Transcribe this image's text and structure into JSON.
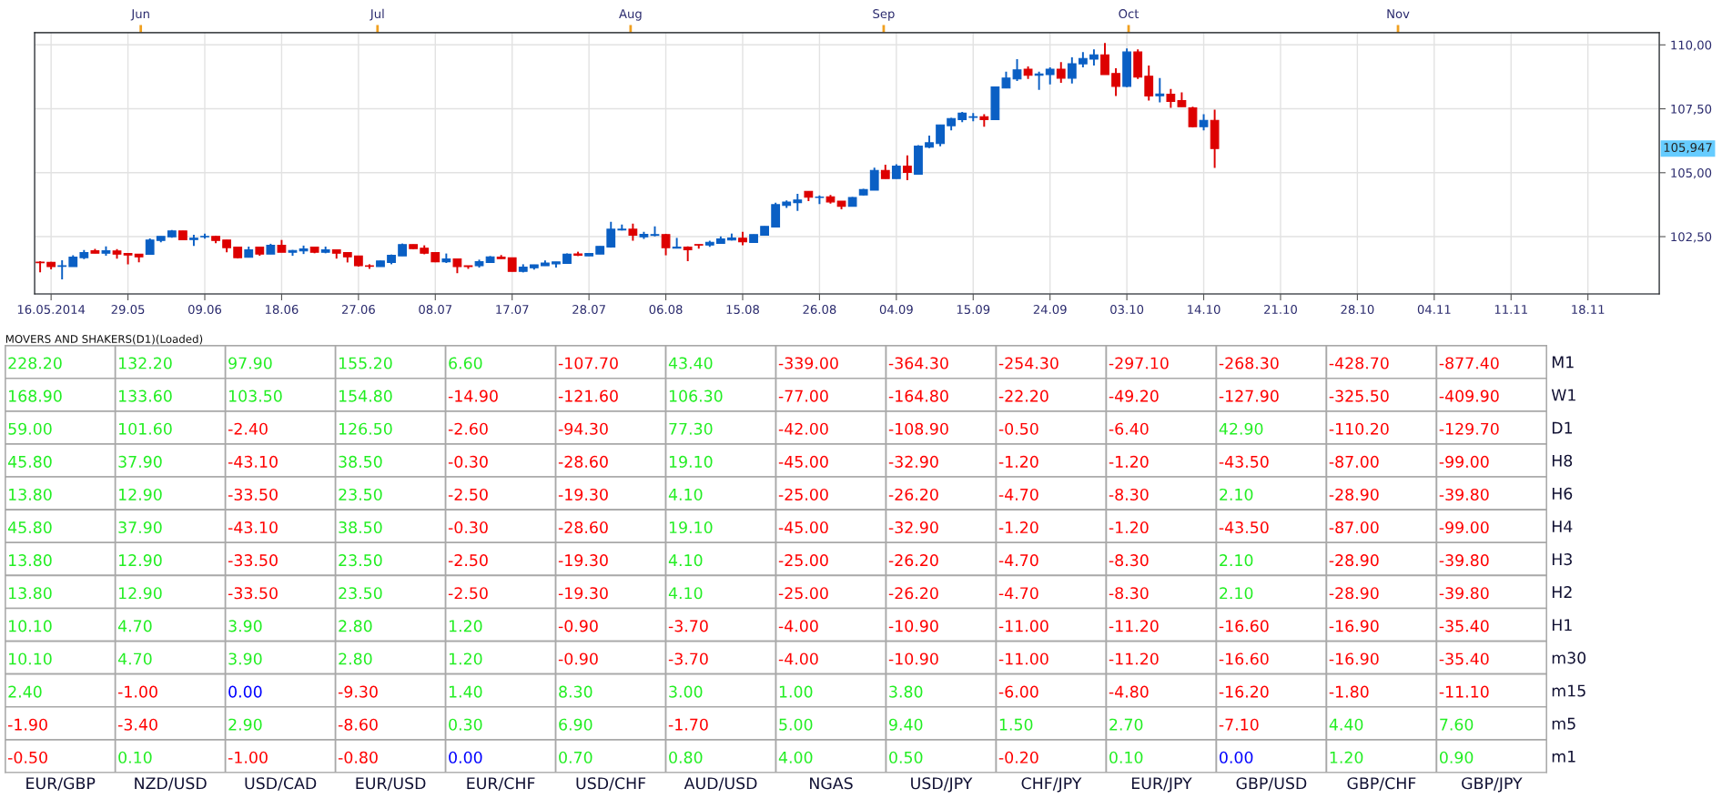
{
  "chart_data": [
    {
      "type": "candlestick",
      "categories": [
        null,
        "16.05.2014",
        null,
        null,
        null,
        null,
        null,
        null,
        "29.05",
        null,
        null,
        null,
        null,
        null,
        null,
        "09.06",
        null,
        null,
        null,
        null,
        null,
        null,
        "18.06",
        null,
        null,
        null,
        null,
        null,
        null,
        "27.06",
        null,
        null,
        null,
        null,
        null,
        null,
        "08.07",
        null,
        null,
        null,
        null,
        null,
        null,
        "17.07",
        null,
        null,
        null,
        null,
        null,
        null,
        "28.07",
        null,
        null,
        null,
        null,
        null,
        null,
        "06.08",
        null,
        null,
        null,
        null,
        null,
        null,
        "15.08",
        null,
        null,
        null,
        null,
        null,
        null,
        "26.08",
        null,
        null,
        null,
        null,
        null,
        null,
        "04.09",
        null,
        null,
        null,
        null,
        null,
        null,
        "15.09",
        null,
        null,
        null,
        null,
        null,
        null,
        "24.09",
        null,
        null,
        null,
        null,
        null,
        null,
        "03.10",
        null,
        null,
        null,
        null,
        null,
        null,
        "14.10",
        null,
        null,
        null,
        null,
        null,
        null,
        "21.10",
        null,
        null,
        null,
        null,
        null,
        null,
        "28.10",
        null,
        null,
        null,
        null,
        null,
        null,
        "04.11",
        null,
        null,
        null,
        null,
        null,
        null,
        "11.11",
        null,
        null,
        null,
        null,
        null,
        null,
        "18.11",
        null,
        null,
        null,
        null,
        null,
        null
      ],
      "ohlc": [
        [
          101.5,
          101.54,
          101.1,
          101.48
        ],
        [
          101.49,
          101.51,
          101.22,
          101.33
        ],
        [
          101.34,
          101.58,
          100.83,
          101.36
        ],
        [
          101.33,
          101.77,
          101.33,
          101.7
        ],
        [
          101.68,
          101.98,
          101.62,
          101.88
        ],
        [
          101.95,
          102.02,
          101.85,
          101.85
        ],
        [
          101.85,
          102.12,
          101.75,
          101.95
        ],
        [
          101.94,
          102.01,
          101.64,
          101.82
        ],
        [
          101.84,
          101.84,
          101.42,
          101.78
        ],
        [
          101.81,
          101.81,
          101.5,
          101.71
        ],
        [
          101.81,
          102.43,
          101.8,
          102.37
        ],
        [
          102.35,
          102.51,
          102.28,
          102.51
        ],
        [
          102.49,
          102.76,
          102.46,
          102.72
        ],
        [
          102.72,
          102.72,
          102.36,
          102.38
        ],
        [
          102.39,
          102.57,
          102.14,
          102.44
        ],
        [
          102.49,
          102.62,
          102.42,
          102.51
        ],
        [
          102.51,
          102.54,
          102.24,
          102.35
        ],
        [
          102.37,
          102.37,
          101.89,
          102.07
        ],
        [
          102.09,
          102.09,
          101.65,
          101.68
        ],
        [
          101.69,
          102.11,
          101.69,
          101.98
        ],
        [
          102.09,
          102.09,
          101.75,
          101.82
        ],
        [
          101.82,
          102.22,
          101.82,
          102.16
        ],
        [
          102.16,
          102.37,
          101.89,
          101.89
        ],
        [
          101.89,
          101.98,
          101.75,
          101.96
        ],
        [
          101.94,
          102.15,
          101.82,
          102.02
        ],
        [
          102.09,
          102.11,
          101.85,
          101.89
        ],
        [
          101.89,
          102.11,
          101.85,
          101.98
        ],
        [
          101.98,
          101.98,
          101.64,
          101.85
        ],
        [
          101.88,
          101.88,
          101.49,
          101.71
        ],
        [
          101.74,
          101.74,
          101.33,
          101.36
        ],
        [
          101.36,
          101.42,
          101.24,
          101.34
        ],
        [
          101.33,
          101.56,
          101.33,
          101.55
        ],
        [
          101.49,
          101.8,
          101.42,
          101.77
        ],
        [
          101.75,
          102.23,
          101.75,
          102.19
        ],
        [
          102.19,
          102.19,
          102.01,
          102.03
        ],
        [
          102.05,
          102.16,
          101.81,
          101.85
        ],
        [
          101.88,
          101.88,
          101.5,
          101.52
        ],
        [
          101.52,
          101.84,
          101.47,
          101.63
        ],
        [
          101.63,
          101.63,
          101.07,
          101.33
        ],
        [
          101.36,
          101.36,
          101.24,
          101.33
        ],
        [
          101.36,
          101.6,
          101.29,
          101.52
        ],
        [
          101.49,
          101.74,
          101.49,
          101.71
        ],
        [
          101.7,
          101.78,
          101.64,
          101.64
        ],
        [
          101.67,
          101.67,
          101.14,
          101.14
        ],
        [
          101.14,
          101.42,
          101.1,
          101.31
        ],
        [
          101.28,
          101.4,
          101.21,
          101.4
        ],
        [
          101.36,
          101.57,
          101.36,
          101.47
        ],
        [
          101.44,
          101.51,
          101.29,
          101.51
        ],
        [
          101.45,
          101.84,
          101.44,
          101.81
        ],
        [
          101.82,
          101.91,
          101.74,
          101.77
        ],
        [
          101.75,
          101.84,
          101.75,
          101.84
        ],
        [
          101.82,
          102.12,
          101.82,
          102.12
        ],
        [
          102.09,
          103.08,
          102.07,
          102.79
        ],
        [
          102.76,
          102.97,
          102.74,
          102.79
        ],
        [
          102.79,
          103.01,
          102.34,
          102.56
        ],
        [
          102.49,
          102.69,
          102.41,
          102.59
        ],
        [
          102.55,
          102.9,
          102.51,
          102.58
        ],
        [
          102.58,
          102.61,
          101.77,
          102.07
        ],
        [
          102.05,
          102.45,
          102.05,
          102.09
        ],
        [
          102.09,
          102.12,
          101.54,
          101.99
        ],
        [
          102.19,
          102.19,
          102.03,
          102.17
        ],
        [
          102.17,
          102.34,
          102.1,
          102.28
        ],
        [
          102.24,
          102.51,
          102.24,
          102.41
        ],
        [
          102.37,
          102.62,
          102.35,
          102.45
        ],
        [
          102.44,
          102.69,
          102.16,
          102.3
        ],
        [
          102.27,
          102.58,
          102.27,
          102.58
        ],
        [
          102.56,
          102.9,
          102.56,
          102.9
        ],
        [
          102.88,
          103.83,
          102.88,
          103.75
        ],
        [
          103.72,
          103.92,
          103.62,
          103.85
        ],
        [
          103.83,
          104.17,
          103.51,
          103.93
        ],
        [
          104.27,
          104.27,
          103.89,
          104.04
        ],
        [
          104.03,
          104.11,
          103.77,
          104.05
        ],
        [
          104.06,
          104.13,
          103.79,
          103.86
        ],
        [
          103.89,
          103.89,
          103.57,
          103.69
        ],
        [
          103.69,
          104.05,
          103.69,
          104.03
        ],
        [
          104.13,
          104.37,
          104.11,
          104.34
        ],
        [
          104.32,
          105.2,
          104.32,
          105.09
        ],
        [
          105.09,
          105.31,
          104.77,
          104.77
        ],
        [
          104.77,
          105.33,
          104.77,
          105.26
        ],
        [
          105.26,
          105.68,
          104.71,
          105.01
        ],
        [
          104.94,
          106.08,
          104.94,
          106.04
        ],
        [
          106.0,
          106.45,
          105.96,
          106.17
        ],
        [
          106.14,
          106.87,
          106.03,
          106.87
        ],
        [
          106.84,
          107.15,
          106.66,
          107.12
        ],
        [
          107.08,
          107.38,
          106.98,
          107.33
        ],
        [
          107.17,
          107.33,
          107.01,
          107.19
        ],
        [
          107.19,
          107.29,
          106.8,
          107.08
        ],
        [
          107.08,
          108.35,
          107.08,
          108.35
        ],
        [
          108.31,
          108.95,
          108.31,
          108.7
        ],
        [
          108.67,
          109.44,
          108.59,
          109.02
        ],
        [
          109.05,
          109.16,
          108.67,
          108.81
        ],
        [
          108.81,
          108.95,
          108.24,
          108.86
        ],
        [
          108.84,
          109.12,
          108.45,
          109.05
        ],
        [
          109.05,
          109.33,
          108.52,
          108.7
        ],
        [
          108.7,
          109.51,
          108.49,
          109.26
        ],
        [
          109.26,
          109.72,
          109.12,
          109.47
        ],
        [
          109.44,
          109.82,
          109.19,
          109.61
        ],
        [
          109.61,
          110.07,
          108.84,
          108.84
        ],
        [
          108.88,
          109.09,
          108.0,
          108.38
        ],
        [
          108.38,
          109.86,
          108.35,
          109.72
        ],
        [
          109.72,
          109.82,
          108.67,
          108.74
        ],
        [
          108.77,
          109.19,
          107.82,
          108.0
        ],
        [
          108.01,
          108.7,
          107.75,
          108.08
        ],
        [
          108.07,
          108.28,
          107.54,
          107.79
        ],
        [
          107.82,
          108.14,
          107.58,
          107.58
        ],
        [
          107.54,
          107.58,
          106.77,
          106.8
        ],
        [
          106.8,
          107.29,
          106.66,
          107.05
        ],
        [
          107.05,
          107.47,
          105.19,
          105.947
        ],
        null,
        null,
        null,
        null,
        null,
        null,
        null,
        null,
        null,
        null,
        null,
        null,
        null,
        null,
        null,
        null,
        null,
        null,
        null,
        null,
        null,
        null,
        null,
        null,
        null,
        null,
        null,
        null,
        null,
        null,
        null,
        null,
        null,
        null,
        null,
        null,
        null,
        null,
        null,
        null
      ],
      "colors": [
        "#dd0000",
        "#dd0000",
        "#0a5fc4",
        "#0a5fc4",
        "#0a5fc4",
        "#dd0000",
        "#0a5fc4",
        "#dd0000",
        "#dd0000",
        "#dd0000",
        "#0a5fc4",
        "#0a5fc4",
        "#0a5fc4",
        "#dd0000",
        "#0a5fc4",
        "#0a5fc4",
        "#dd0000",
        "#dd0000",
        "#dd0000",
        "#0a5fc4",
        "#dd0000",
        "#0a5fc4",
        "#dd0000",
        "#0a5fc4",
        "#0a5fc4",
        "#dd0000",
        "#0a5fc4",
        "#dd0000",
        "#dd0000",
        "#dd0000",
        "#dd0000",
        "#0a5fc4",
        "#0a5fc4",
        "#0a5fc4",
        "#dd0000",
        "#dd0000",
        "#dd0000",
        "#0a5fc4",
        "#dd0000",
        "#dd0000",
        "#0a5fc4",
        "#0a5fc4",
        "#dd0000",
        "#dd0000",
        "#0a5fc4",
        "#0a5fc4",
        "#0a5fc4",
        "#0a5fc4",
        "#0a5fc4",
        "#dd0000",
        "#0a5fc4",
        "#0a5fc4",
        "#0a5fc4",
        "#0a5fc4",
        "#dd0000",
        "#0a5fc4",
        "#0a5fc4",
        "#dd0000",
        "#0a5fc4",
        "#dd0000",
        "#dd0000",
        "#0a5fc4",
        "#0a5fc4",
        "#0a5fc4",
        "#dd0000",
        "#0a5fc4",
        "#0a5fc4",
        "#0a5fc4",
        "#0a5fc4",
        "#0a5fc4",
        "#dd0000",
        "#0a5fc4",
        "#dd0000",
        "#dd0000",
        "#0a5fc4",
        "#0a5fc4",
        "#0a5fc4",
        "#dd0000",
        "#0a5fc4",
        "#dd0000",
        "#0a5fc4",
        "#0a5fc4",
        "#0a5fc4",
        "#0a5fc4",
        "#0a5fc4",
        "#0a5fc4",
        "#dd0000",
        "#0a5fc4",
        "#0a5fc4",
        "#0a5fc4",
        "#dd0000",
        "#0a5fc4",
        "#0a5fc4",
        "#dd0000",
        "#0a5fc4",
        "#0a5fc4",
        "#0a5fc4",
        "#dd0000",
        "#dd0000",
        "#0a5fc4",
        "#dd0000",
        "#dd0000",
        "#0a5fc4",
        "#dd0000",
        "#dd0000",
        "#dd0000",
        "#0a5fc4",
        "#dd0000",
        null,
        null,
        null,
        null,
        null,
        null,
        null,
        null,
        null,
        null,
        null,
        null,
        null,
        null,
        null,
        null,
        null,
        null,
        null,
        null,
        null,
        null,
        null,
        null,
        null,
        null,
        null,
        null,
        null,
        null,
        null,
        null,
        null,
        null,
        null,
        null,
        null,
        null,
        null,
        null
      ],
      "x2lim": [
        "2014-05-20",
        "2014-12-05"
      ],
      "x2ticks": [
        {
          "value": "2014-06-02",
          "label": "Jun"
        },
        {
          "value": "2014-07-01",
          "label": "Jul"
        },
        {
          "value": "2014-08-01",
          "label": "Aug"
        },
        {
          "value": "2014-09-01",
          "label": "Sep"
        },
        {
          "value": "2014-10-01",
          "label": "Oct"
        },
        {
          "value": "2014-11-03",
          "label": "Nov"
        }
      ],
      "ylim": [
        100.26,
        110.48
      ],
      "yticks": [
        {
          "value": 102.5,
          "label": "102,50"
        },
        {
          "value": 105,
          "label": "105,00"
        },
        {
          "value": 107.5,
          "label": "107,50"
        },
        {
          "value": 110,
          "label": "110,00"
        }
      ],
      "annotations": [
        "105,947"
      ],
      "grid": true
    },
    {
      "type": "heatmap",
      "title": "MOVERS AND SHAKERS(D1)(Loaded)",
      "categories": [
        "EUR/GBP",
        "NZD/USD",
        "USD/CAD",
        "EUR/USD",
        "EUR/CHF",
        "USD/CHF",
        "AUD/USD",
        "NGAS",
        "USD/JPY",
        "CHF/JPY",
        "EUR/JPY",
        "GBP/USD",
        "GBP/CHF",
        "GBP/JPY"
      ],
      "y_categories": [
        "M1",
        "W1",
        "D1",
        "H8",
        "H6",
        "H4",
        "H3",
        "H2",
        "H1",
        "m30",
        "m15",
        "m5",
        "m1"
      ],
      "cells": [
        [
          228.2,
          132.2,
          97.9,
          155.2,
          6.6,
          -107.7,
          43.4,
          -339.0,
          -364.3,
          -254.3,
          -297.1,
          -268.3,
          -428.7,
          -877.4
        ],
        [
          168.9,
          133.6,
          103.5,
          154.8,
          -14.9,
          -121.6,
          106.3,
          -77.0,
          -164.8,
          -22.2,
          -49.2,
          -127.9,
          -325.5,
          -409.9
        ],
        [
          59.0,
          101.6,
          -2.4,
          126.5,
          -2.6,
          -94.3,
          77.3,
          -42.0,
          -108.9,
          -0.5,
          -6.4,
          42.9,
          -110.2,
          -129.7
        ],
        [
          45.8,
          37.9,
          -43.1,
          38.5,
          -0.3,
          -28.6,
          19.1,
          -45.0,
          -32.9,
          -1.2,
          -1.2,
          -43.5,
          -87.0,
          -99.0
        ],
        [
          13.8,
          12.9,
          -33.5,
          23.5,
          -2.5,
          -19.3,
          4.1,
          -25.0,
          -26.2,
          -4.7,
          -8.3,
          2.1,
          -28.9,
          -39.8
        ],
        [
          45.8,
          37.9,
          -43.1,
          38.5,
          -0.3,
          -28.6,
          19.1,
          -45.0,
          -32.9,
          -1.2,
          -1.2,
          -43.5,
          -87.0,
          -99.0
        ],
        [
          13.8,
          12.9,
          -33.5,
          23.5,
          -2.5,
          -19.3,
          4.1,
          -25.0,
          -26.2,
          -4.7,
          -8.3,
          2.1,
          -28.9,
          -39.8
        ],
        [
          13.8,
          12.9,
          -33.5,
          23.5,
          -2.5,
          -19.3,
          4.1,
          -25.0,
          -26.2,
          -4.7,
          -8.3,
          2.1,
          -28.9,
          -39.8
        ],
        [
          10.1,
          4.7,
          3.9,
          2.8,
          1.2,
          -0.9,
          -3.7,
          -4.0,
          -10.9,
          -11.0,
          -11.2,
          -16.6,
          -16.9,
          -35.4
        ],
        [
          10.1,
          4.7,
          3.9,
          2.8,
          1.2,
          -0.9,
          -3.7,
          -4.0,
          -10.9,
          -11.0,
          -11.2,
          -16.6,
          -16.9,
          -35.4
        ],
        [
          2.4,
          -1.0,
          0.0,
          -9.3,
          1.4,
          8.3,
          3.0,
          1.0,
          3.8,
          -6.0,
          -4.8,
          -16.2,
          -1.8,
          -11.1
        ],
        [
          -1.9,
          -3.4,
          2.9,
          -8.6,
          0.3,
          6.9,
          -1.7,
          5.0,
          9.4,
          1.5,
          2.7,
          -7.1,
          4.4,
          7.6
        ],
        [
          -0.5,
          0.1,
          -1.0,
          -0.8,
          0.0,
          0.7,
          0.8,
          4.0,
          0.5,
          -0.2,
          0.1,
          0.0,
          1.2,
          0.9
        ]
      ],
      "cell_labels": [
        [
          "228.20",
          "132.20",
          "97.90",
          "155.20",
          "6.60",
          "-107.70",
          "43.40",
          "-339.00",
          "-364.30",
          "-254.30",
          "-297.10",
          "-268.30",
          "-428.70",
          "-877.40"
        ],
        [
          "168.90",
          "133.60",
          "103.50",
          "154.80",
          "-14.90",
          "-121.60",
          "106.30",
          "-77.00",
          "-164.80",
          "-22.20",
          "-49.20",
          "-127.90",
          "-325.50",
          "-409.90"
        ],
        [
          "59.00",
          "101.60",
          "-2.40",
          "126.50",
          "-2.60",
          "-94.30",
          "77.30",
          "-42.00",
          "-108.90",
          "-0.50",
          "-6.40",
          "42.90",
          "-110.20",
          "-129.70"
        ],
        [
          "45.80",
          "37.90",
          "-43.10",
          "38.50",
          "-0.30",
          "-28.60",
          "19.10",
          "-45.00",
          "-32.90",
          "-1.20",
          "-1.20",
          "-43.50",
          "-87.00",
          "-99.00"
        ],
        [
          "13.80",
          "12.90",
          "-33.50",
          "23.50",
          "-2.50",
          "-19.30",
          "4.10",
          "-25.00",
          "-26.20",
          "-4.70",
          "-8.30",
          "2.10",
          "-28.90",
          "-39.80"
        ],
        [
          "45.80",
          "37.90",
          "-43.10",
          "38.50",
          "-0.30",
          "-28.60",
          "19.10",
          "-45.00",
          "-32.90",
          "-1.20",
          "-1.20",
          "-43.50",
          "-87.00",
          "-99.00"
        ],
        [
          "13.80",
          "12.90",
          "-33.50",
          "23.50",
          "-2.50",
          "-19.30",
          "4.10",
          "-25.00",
          "-26.20",
          "-4.70",
          "-8.30",
          "2.10",
          "-28.90",
          "-39.80"
        ],
        [
          "13.80",
          "12.90",
          "-33.50",
          "23.50",
          "-2.50",
          "-19.30",
          "4.10",
          "-25.00",
          "-26.20",
          "-4.70",
          "-8.30",
          "2.10",
          "-28.90",
          "-39.80"
        ],
        [
          "10.10",
          "4.70",
          "3.90",
          "2.80",
          "1.20",
          "-0.90",
          "-3.70",
          "-4.00",
          "-10.90",
          "-11.00",
          "-11.20",
          "-16.60",
          "-16.90",
          "-35.40"
        ],
        [
          "10.10",
          "4.70",
          "3.90",
          "2.80",
          "1.20",
          "-0.90",
          "-3.70",
          "-4.00",
          "-10.90",
          "-11.00",
          "-11.20",
          "-16.60",
          "-16.90",
          "-35.40"
        ],
        [
          "2.40",
          "-1.00",
          "0.00",
          "-9.30",
          "1.40",
          "8.30",
          "3.00",
          "1.00",
          "3.80",
          "-6.00",
          "-4.80",
          "-16.20",
          "-1.80",
          "-11.10"
        ],
        [
          "-1.90",
          "-3.40",
          "2.90",
          "-8.60",
          "0.30",
          "6.90",
          "-1.70",
          "5.00",
          "9.40",
          "1.50",
          "2.70",
          "-7.10",
          "4.40",
          "7.60"
        ],
        [
          "-0.50",
          "0.10",
          "-1.00",
          "-0.80",
          "0.00",
          "0.70",
          "0.80",
          "4.00",
          "0.50",
          "-0.20",
          "0.10",
          "0.00",
          "1.20",
          "0.90"
        ]
      ],
      "colors": [
        "#ff0000",
        "#0000ff",
        "#22ee22"
      ]
    }
  ]
}
